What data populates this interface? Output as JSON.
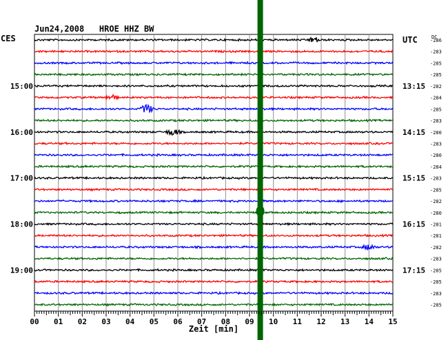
{
  "chart_data": {
    "type": "line",
    "title": "Jun24,2008   HROE HHZ BW",
    "left_label": "CES",
    "right_label": "UTC",
    "dc_label": "DC",
    "xlabel": "Zeit [min]",
    "xlim": [
      0,
      15
    ],
    "x_ticks": [
      "00",
      "01",
      "02",
      "03",
      "04",
      "05",
      "06",
      "07",
      "08",
      "09",
      "10",
      "11",
      "12",
      "13",
      "14",
      "15"
    ],
    "grid": true,
    "trace_colors": [
      "#000000",
      "#ff0000",
      "#0000ff",
      "#006400"
    ],
    "marker_color": "#006400",
    "marker_minute": 9.45,
    "left_hour_labels": [
      {
        "trace": 4,
        "label": "15:00"
      },
      {
        "trace": 8,
        "label": "16:00"
      },
      {
        "trace": 12,
        "label": "17:00"
      },
      {
        "trace": 16,
        "label": "18:00"
      },
      {
        "trace": 20,
        "label": "19:00"
      }
    ],
    "right_hour_labels": [
      {
        "trace": 0,
        "label": "UTC"
      },
      {
        "trace": 4,
        "label": "13:15"
      },
      {
        "trace": 8,
        "label": "14:15"
      },
      {
        "trace": 12,
        "label": "15:15"
      },
      {
        "trace": 16,
        "label": "16:15"
      },
      {
        "trace": 20,
        "label": "17:15"
      }
    ],
    "dc_offsets": [
      "-286",
      "-283",
      "-285",
      "-285",
      "-282",
      "-284",
      "-285",
      "-283",
      "-280",
      "-283",
      "-280",
      "-284",
      "-283",
      "-285",
      "-282",
      "-280",
      "-281",
      "-281",
      "-282",
      "-283",
      "-285",
      "-285",
      "-283",
      "-285"
    ],
    "events": [
      {
        "trace": 0,
        "minute": 11.7,
        "amp": 4
      },
      {
        "trace": 5,
        "minute": 3.2,
        "amp": 4
      },
      {
        "trace": 6,
        "minute": 4.7,
        "amp": 7
      },
      {
        "trace": 8,
        "minute": 5.8,
        "amp": 5
      },
      {
        "trace": 18,
        "minute": 14.0,
        "amp": 4
      }
    ]
  }
}
